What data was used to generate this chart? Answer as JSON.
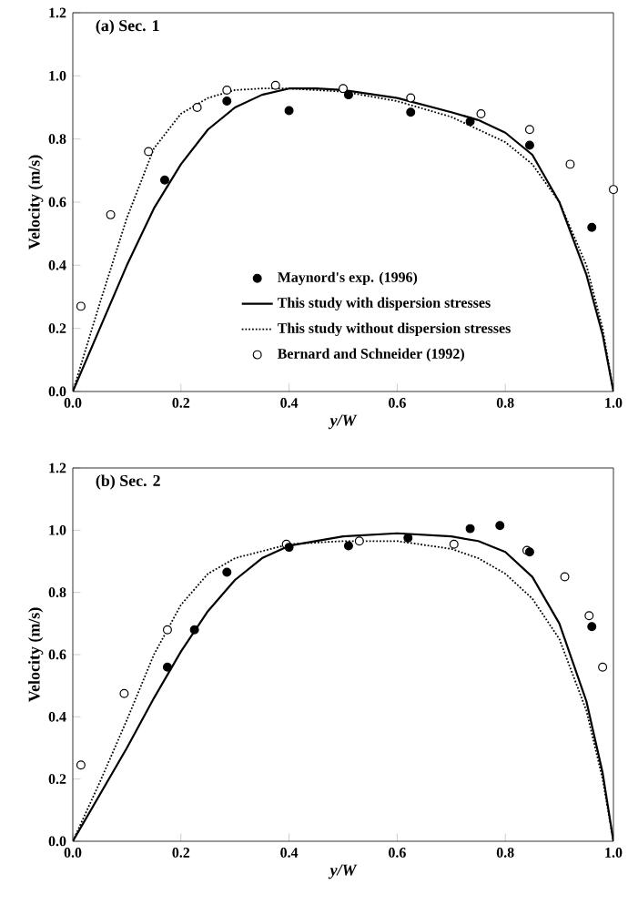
{
  "chart_data": [
    {
      "type": "line",
      "title": "(a)  Sec. 1",
      "xlabel": "y/W",
      "ylabel": "Velocity (m/s)",
      "xlim": [
        0,
        1
      ],
      "ylim": [
        0,
        1.2
      ],
      "xticks": [
        {
          "value": 0,
          "label": "0.0"
        },
        {
          "value": 0.2,
          "label": "0.2"
        },
        {
          "value": 0.4,
          "label": "0.4"
        },
        {
          "value": 0.6,
          "label": "0.6"
        },
        {
          "value": 0.8,
          "label": "0.8"
        },
        {
          "value": 1,
          "label": "1.0"
        }
      ],
      "yticks": [
        {
          "value": 0,
          "label": "0.0"
        },
        {
          "value": 0.2,
          "label": "0.2"
        },
        {
          "value": 0.4,
          "label": "0.4"
        },
        {
          "value": 0.6,
          "label": "0.6"
        },
        {
          "value": 0.8,
          "label": "0.8"
        },
        {
          "value": 1,
          "label": "1.0"
        },
        {
          "value": 1.2,
          "label": "1.2"
        }
      ],
      "legend": "bottom",
      "series": [
        {
          "name": "Maynord's exp. (1996)",
          "type": "scatter",
          "marker": "circle",
          "color": "#000000",
          "x": [
            0.17,
            0.285,
            0.4,
            0.51,
            0.625,
            0.735,
            0.845,
            0.96
          ],
          "values": [
            0.67,
            0.92,
            0.89,
            0.94,
            0.885,
            0.855,
            0.78,
            0.52
          ]
        },
        {
          "name": "This study with dispersion stresses",
          "line_style": "solid",
          "color": "#000000",
          "x": [
            0,
            0.05,
            0.1,
            0.15,
            0.2,
            0.25,
            0.3,
            0.35,
            0.4,
            0.45,
            0.5,
            0.6,
            0.7,
            0.75,
            0.8,
            0.85,
            0.9,
            0.95,
            0.98,
            1.0
          ],
          "values": [
            0,
            0.2,
            0.4,
            0.58,
            0.72,
            0.83,
            0.9,
            0.94,
            0.96,
            0.96,
            0.955,
            0.93,
            0.885,
            0.86,
            0.82,
            0.75,
            0.6,
            0.37,
            0.18,
            0
          ]
        },
        {
          "name": "This study without dispersion stresses",
          "line_style": "dotted",
          "color": "#000000",
          "x": [
            0,
            0.05,
            0.1,
            0.15,
            0.2,
            0.25,
            0.3,
            0.35,
            0.4,
            0.5,
            0.6,
            0.7,
            0.8,
            0.85,
            0.9,
            0.95,
            0.98,
            1.0
          ],
          "values": [
            0,
            0.28,
            0.55,
            0.77,
            0.88,
            0.93,
            0.955,
            0.96,
            0.96,
            0.95,
            0.92,
            0.87,
            0.79,
            0.72,
            0.6,
            0.4,
            0.2,
            0
          ]
        },
        {
          "name": "Bernard and Schneider (1992)",
          "type": "scatter",
          "marker": "circle",
          "color": "#ffffff",
          "x": [
            0.015,
            0.07,
            0.14,
            0.23,
            0.285,
            0.375,
            0.5,
            0.625,
            0.755,
            0.845,
            0.92,
            1.0
          ],
          "values": [
            0.27,
            0.56,
            0.76,
            0.9,
            0.955,
            0.97,
            0.96,
            0.93,
            0.88,
            0.83,
            0.72,
            0.64
          ]
        }
      ]
    },
    {
      "type": "line",
      "title": "(b)  Sec. 2",
      "xlabel": "y/W",
      "ylabel": "Velocity (m/s)",
      "xlim": [
        0,
        1
      ],
      "ylim": [
        0,
        1.2
      ],
      "xticks": [
        {
          "value": 0,
          "label": "0.0"
        },
        {
          "value": 0.2,
          "label": "0.2"
        },
        {
          "value": 0.4,
          "label": "0.4"
        },
        {
          "value": 0.6,
          "label": "0.6"
        },
        {
          "value": 0.8,
          "label": "0.8"
        },
        {
          "value": 1,
          "label": "1.0"
        }
      ],
      "yticks": [
        {
          "value": 0,
          "label": "0.0"
        },
        {
          "value": 0.2,
          "label": "0.2"
        },
        {
          "value": 0.4,
          "label": "0.4"
        },
        {
          "value": 0.6,
          "label": "0.6"
        },
        {
          "value": 0.8,
          "label": "0.8"
        },
        {
          "value": 1,
          "label": "1.0"
        },
        {
          "value": 1.2,
          "label": "1.2"
        }
      ],
      "series": [
        {
          "type": "scatter",
          "marker": "circle",
          "color": "#000000",
          "x": [
            0.175,
            0.225,
            0.285,
            0.4,
            0.51,
            0.62,
            0.735,
            0.79,
            0.845,
            0.96
          ],
          "values": [
            0.56,
            0.68,
            0.865,
            0.945,
            0.95,
            0.975,
            1.005,
            1.015,
            0.93,
            0.69
          ]
        },
        {
          "line_style": "solid",
          "color": "#000000",
          "x": [
            0,
            0.05,
            0.1,
            0.15,
            0.2,
            0.25,
            0.3,
            0.35,
            0.4,
            0.5,
            0.6,
            0.7,
            0.75,
            0.8,
            0.85,
            0.9,
            0.95,
            0.98,
            1.0
          ],
          "values": [
            0,
            0.15,
            0.3,
            0.46,
            0.61,
            0.74,
            0.84,
            0.91,
            0.95,
            0.98,
            0.99,
            0.98,
            0.965,
            0.93,
            0.85,
            0.7,
            0.45,
            0.22,
            0
          ]
        },
        {
          "line_style": "dotted",
          "color": "#000000",
          "x": [
            0,
            0.05,
            0.1,
            0.15,
            0.2,
            0.25,
            0.3,
            0.4,
            0.5,
            0.6,
            0.7,
            0.75,
            0.8,
            0.85,
            0.9,
            0.95,
            0.98,
            1.0
          ],
          "values": [
            0,
            0.19,
            0.39,
            0.6,
            0.76,
            0.86,
            0.91,
            0.955,
            0.965,
            0.965,
            0.94,
            0.91,
            0.86,
            0.78,
            0.65,
            0.42,
            0.2,
            0
          ]
        },
        {
          "type": "scatter",
          "marker": "circle",
          "color": "#ffffff",
          "x": [
            0.015,
            0.095,
            0.175,
            0.395,
            0.53,
            0.705,
            0.84,
            0.91,
            0.955,
            0.98
          ],
          "values": [
            0.245,
            0.475,
            0.68,
            0.955,
            0.965,
            0.955,
            0.935,
            0.85,
            0.725,
            0.56
          ]
        }
      ]
    }
  ]
}
